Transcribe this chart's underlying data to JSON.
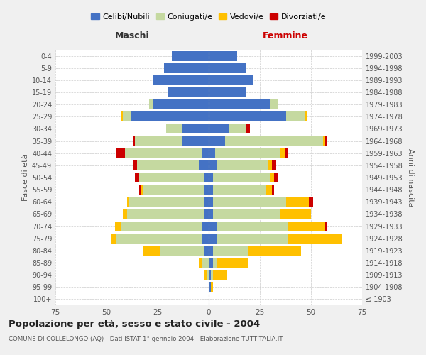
{
  "age_groups": [
    "100+",
    "95-99",
    "90-94",
    "85-89",
    "80-84",
    "75-79",
    "70-74",
    "65-69",
    "60-64",
    "55-59",
    "50-54",
    "45-49",
    "40-44",
    "35-39",
    "30-34",
    "25-29",
    "20-24",
    "15-19",
    "10-14",
    "5-9",
    "0-4"
  ],
  "birth_years": [
    "≤ 1903",
    "1904-1908",
    "1909-1913",
    "1914-1918",
    "1919-1923",
    "1924-1928",
    "1929-1933",
    "1934-1938",
    "1939-1943",
    "1944-1948",
    "1949-1953",
    "1954-1958",
    "1959-1963",
    "1964-1968",
    "1969-1973",
    "1974-1978",
    "1979-1983",
    "1984-1988",
    "1989-1993",
    "1994-1998",
    "1999-2003"
  ],
  "colors": {
    "celibi": "#4472c4",
    "coniugati": "#c5d9a0",
    "vedovi": "#ffc000",
    "divorziati": "#cc0000"
  },
  "maschi": {
    "celibi": [
      0,
      0,
      0,
      0,
      2,
      3,
      3,
      2,
      2,
      2,
      2,
      5,
      3,
      13,
      13,
      38,
      27,
      20,
      27,
      22,
      18
    ],
    "coniugati": [
      0,
      0,
      1,
      3,
      22,
      42,
      40,
      38,
      37,
      30,
      32,
      30,
      38,
      23,
      8,
      4,
      2,
      0,
      0,
      0,
      0
    ],
    "vedovi": [
      0,
      0,
      1,
      2,
      8,
      3,
      3,
      2,
      1,
      1,
      0,
      0,
      0,
      0,
      0,
      1,
      0,
      0,
      0,
      0,
      0
    ],
    "divorziati": [
      0,
      0,
      0,
      0,
      0,
      0,
      0,
      0,
      0,
      1,
      2,
      2,
      4,
      1,
      0,
      0,
      0,
      0,
      0,
      0,
      0
    ]
  },
  "femmine": {
    "celibi": [
      0,
      1,
      1,
      2,
      2,
      4,
      4,
      2,
      2,
      2,
      2,
      4,
      3,
      8,
      10,
      38,
      30,
      18,
      22,
      18,
      14
    ],
    "coniugati": [
      0,
      0,
      1,
      2,
      17,
      35,
      35,
      33,
      36,
      26,
      28,
      25,
      32,
      48,
      8,
      9,
      4,
      0,
      0,
      0,
      0
    ],
    "vedovi": [
      0,
      1,
      7,
      15,
      26,
      26,
      18,
      15,
      11,
      3,
      2,
      2,
      2,
      1,
      0,
      1,
      0,
      0,
      0,
      0,
      0
    ],
    "divorziati": [
      0,
      0,
      0,
      0,
      0,
      0,
      1,
      0,
      2,
      1,
      2,
      2,
      2,
      1,
      2,
      0,
      0,
      0,
      0,
      0,
      0
    ]
  },
  "title": "Popolazione per età, sesso e stato civile - 2004",
  "subtitle": "COMUNE DI COLLELONGO (AQ) - Dati ISTAT 1° gennaio 2004 - Elaborazione TUTTITALIA.IT",
  "xlabel_left": "Maschi",
  "xlabel_right": "Femmine",
  "ylabel_left": "Fasce di età",
  "ylabel_right": "Anni di nascita",
  "xlim": 75,
  "legend_labels": [
    "Celibi/Nubili",
    "Coniugati/e",
    "Vedovi/e",
    "Divorziati/e"
  ],
  "bg_color": "#f0f0f0",
  "plot_bg": "#ffffff"
}
